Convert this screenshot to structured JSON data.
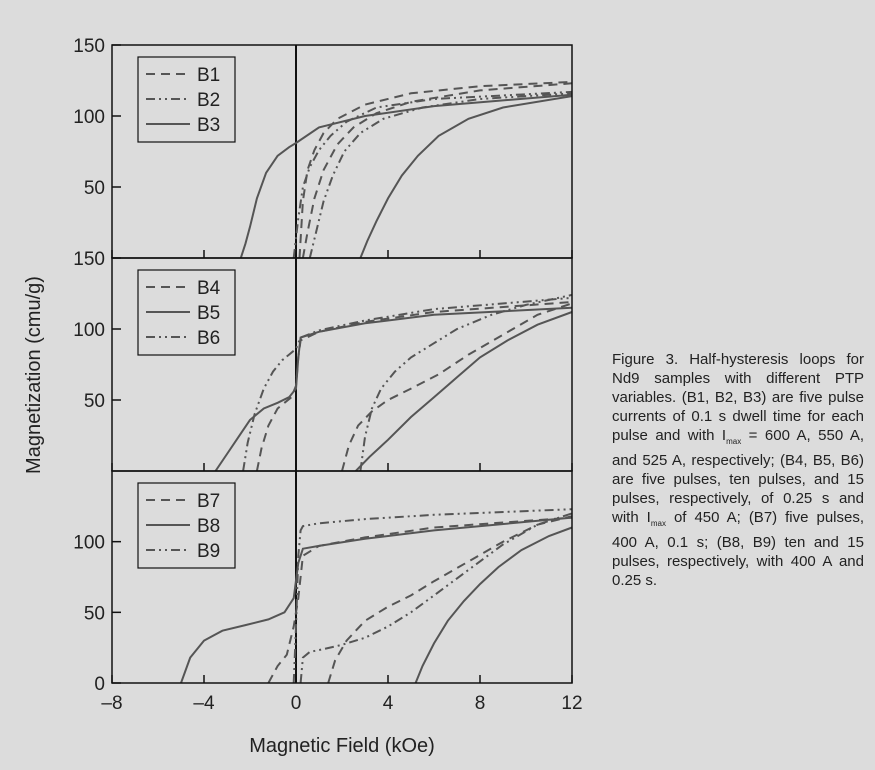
{
  "chart_data": {
    "type": "line",
    "xlabel": "Magnetic Field (kOe)",
    "ylabel": "Magnetization (cmu/g)",
    "xlim": [
      -8,
      12
    ],
    "xticks": [
      -8,
      -4,
      0,
      4,
      8,
      12
    ],
    "xtick_labels": [
      "–8",
      "–4",
      "0",
      "4",
      "8",
      "12"
    ],
    "grid": false,
    "colors": {
      "line": "#555555",
      "axis": "#111111",
      "background": "#dcdcdc"
    },
    "panels": [
      {
        "ylim": [
          0,
          150
        ],
        "yticks": [
          50,
          100,
          150
        ],
        "ytick_labels": [
          "50",
          "100",
          "150"
        ],
        "legend_placement": "top-left",
        "series": [
          {
            "name": "B1",
            "style": "dashed",
            "branches": [
              {
                "x": [
                  0.15,
                  0.3,
                  0.5,
                  0.8,
                  1.2,
                  1.8,
                  3,
                  5,
                  8,
                  12
                ],
                "y": [
                  0,
                  40,
                  62,
                  76,
                  88,
                  98,
                  108,
                  116,
                  121,
                  124
                ]
              },
              {
                "x": [
                  0.3,
                  0.5,
                  0.8,
                  1.2,
                  1.8,
                  2.5,
                  3.5,
                  5,
                  8,
                  12
                ],
                "y": [
                  0,
                  18,
                  42,
                  62,
                  80,
                  92,
                  102,
                  110,
                  118,
                  123
                ]
              }
            ]
          },
          {
            "name": "B2",
            "style": "dash-dot-dot",
            "branches": [
              {
                "x": [
                  -0.1,
                  0.1,
                  0.3,
                  0.6,
                  1,
                  1.5,
                  2.2,
                  3.5,
                  6,
                  12
                ],
                "y": [
                  0,
                  28,
                  50,
                  64,
                  76,
                  86,
                  96,
                  106,
                  112,
                  117
                ]
              },
              {
                "x": [
                  0.6,
                  0.9,
                  1.2,
                  1.6,
                  2.1,
                  2.8,
                  3.8,
                  5.5,
                  8,
                  12
                ],
                "y": [
                  0,
                  20,
                  40,
                  58,
                  75,
                  88,
                  98,
                  106,
                  112,
                  116
                ]
              }
            ]
          },
          {
            "name": "B3",
            "style": "solid",
            "branches": [
              {
                "x": [
                  -2.4,
                  -2.2,
                  -2,
                  -1.7,
                  -1.3,
                  -0.8,
                  -0.3,
                  0,
                  1,
                  3,
                  6,
                  12
                ],
                "y": [
                  0,
                  10,
                  22,
                  42,
                  60,
                  72,
                  78,
                  81,
                  92,
                  100,
                  107,
                  115
                ]
              },
              {
                "x": [
                  2.8,
                  3.1,
                  3.5,
                  4,
                  4.6,
                  5.3,
                  6.2,
                  7.5,
                  9,
                  12
                ],
                "y": [
                  0,
                  12,
                  26,
                  42,
                  58,
                  72,
                  86,
                  98,
                  106,
                  114
                ]
              }
            ]
          }
        ]
      },
      {
        "ylim": [
          0,
          150
        ],
        "yticks": [
          50,
          100,
          150
        ],
        "ytick_labels": [
          "50",
          "100",
          "150"
        ],
        "legend_placement": "top-left",
        "series": [
          {
            "name": "B4",
            "style": "dashed",
            "branches": [
              {
                "x": [
                  -1.7,
                  -1.5,
                  -1.2,
                  -0.8,
                  -0.5,
                  -0.2,
                  0,
                  0.1,
                  0.2,
                  1,
                  3,
                  6,
                  12
                ],
                "y": [
                  0,
                  16,
                  32,
                  44,
                  48,
                  52,
                  60,
                  80,
                  92,
                  98,
                  105,
                  112,
                  119
                ]
              },
              {
                "x": [
                  2,
                  2.3,
                  2.7,
                  3.3,
                  4,
                  5,
                  6.2,
                  7.5,
                  9,
                  10.5,
                  12
                ],
                "y": [
                  0,
                  18,
                  32,
                  42,
                  50,
                  58,
                  68,
                  82,
                  96,
                  110,
                  118
                ]
              }
            ]
          },
          {
            "name": "B5",
            "style": "solid",
            "branches": [
              {
                "x": [
                  -3.5,
                  -3,
                  -2.5,
                  -2,
                  -1.4,
                  -0.8,
                  -0.3,
                  0,
                  0.1,
                  0.2,
                  1,
                  3,
                  6,
                  12
                ],
                "y": [
                  0,
                  12,
                  24,
                  36,
                  44,
                  48,
                  52,
                  58,
                  80,
                  94,
                  98,
                  104,
                  110,
                  115
                ]
              },
              {
                "x": [
                  2.6,
                  3.2,
                  4,
                  5,
                  6,
                  7,
                  8,
                  9.2,
                  10.5,
                  12
                ],
                "y": [
                  0,
                  10,
                  22,
                  38,
                  52,
                  66,
                  80,
                  92,
                  103,
                  112
                ]
              }
            ]
          },
          {
            "name": "B6",
            "style": "dash-dot-dot",
            "branches": [
              {
                "x": [
                  -2.3,
                  -2.1,
                  -1.8,
                  -1.4,
                  -1,
                  -0.6,
                  -0.3,
                  0,
                  0.2,
                  1,
                  3,
                  6,
                  12
                ],
                "y": [
                  0,
                  20,
                  40,
                  58,
                  70,
                  78,
                  82,
                  86,
                  94,
                  99,
                  106,
                  114,
                  122
                ]
              },
              {
                "x": [
                  2.8,
                  3,
                  3.3,
                  3.7,
                  4.3,
                  5,
                  6,
                  7,
                  8.5,
                  10,
                  12
                ],
                "y": [
                  0,
                  24,
                  44,
                  58,
                  70,
                  80,
                  90,
                  100,
                  110,
                  117,
                  124
                ]
              }
            ]
          }
        ]
      },
      {
        "ylim": [
          0,
          150
        ],
        "yticks": [
          0,
          50,
          100
        ],
        "ytick_labels": [
          "0",
          "50",
          "100"
        ],
        "legend_placement": "top-left",
        "series": [
          {
            "name": "B7",
            "style": "dashed",
            "branches": [
              {
                "x": [
                  -1.2,
                  -0.8,
                  -0.4,
                  -0.1,
                  0.1,
                  0.3,
                  1,
                  3,
                  6,
                  12
                ],
                "y": [
                  0,
                  12,
                  20,
                  40,
                  60,
                  90,
                  97,
                  103,
                  110,
                  117
                ]
              },
              {
                "x": [
                  1.4,
                  1.7,
                  2.2,
                  3,
                  4,
                  5,
                  6,
                  7.5,
                  9,
                  10.5,
                  12
                ],
                "y": [
                  0,
                  16,
                  30,
                  44,
                  54,
                  62,
                  72,
                  86,
                  100,
                  112,
                  118
                ]
              }
            ]
          },
          {
            "name": "B8",
            "style": "solid",
            "branches": [
              {
                "x": [
                  -5,
                  -4.6,
                  -4,
                  -3.2,
                  -2.2,
                  -1.2,
                  -0.5,
                  -0.1,
                  0.1,
                  0.3,
                  1,
                  3,
                  6,
                  12
                ],
                "y": [
                  0,
                  18,
                  30,
                  37,
                  41,
                  45,
                  50,
                  60,
                  85,
                  95,
                  97,
                  102,
                  108,
                  117
                ]
              },
              {
                "x": [
                  5.2,
                  5.5,
                  6,
                  6.6,
                  7.3,
                  8,
                  8.8,
                  9.8,
                  11,
                  12
                ],
                "y": [
                  0,
                  12,
                  28,
                  44,
                  58,
                  70,
                  82,
                  94,
                  104,
                  110
                ]
              }
            ]
          },
          {
            "name": "B9",
            "style": "dash-dot-dot",
            "branches": [
              {
                "x": [
                  -0.1,
                  0,
                  0.1,
                  0.2,
                  0.3,
                  1,
                  3,
                  6,
                  12
                ],
                "y": [
                  0,
                  40,
                  90,
                  108,
                  111,
                  113,
                  116,
                  119,
                  123
                ]
              },
              {
                "x": [
                  0.2,
                  0.3,
                  0.6,
                  1.2,
                  2,
                  3,
                  4,
                  5,
                  6,
                  7.5,
                  9,
                  10.5,
                  12
                ],
                "y": [
                  0,
                  18,
                  22,
                  24,
                  27,
                  32,
                  40,
                  50,
                  62,
                  80,
                  98,
                  112,
                  120
                ]
              }
            ]
          }
        ]
      }
    ]
  },
  "caption": {
    "part1": "Figure 3. Half-hysteresis loops for Nd9 samples with different PTP variables. (B1, B2, B3) are five pulse currents of 0.1 s dwell time for each pulse and with I",
    "sub1": "max",
    "part2": " = 600 A, 550 A, and 525 A, respectively; (B4, B5, B6) are five pulses, ten pulses, and 15 pulses, respectively, of 0.25 s and with I",
    "sub2": "max",
    "part3": " of 450 A; (B7) five pulses, 400 A, 0.1 s; (B8, B9) ten and 15 pulses, respectively, with 400 A and 0.25 s."
  }
}
